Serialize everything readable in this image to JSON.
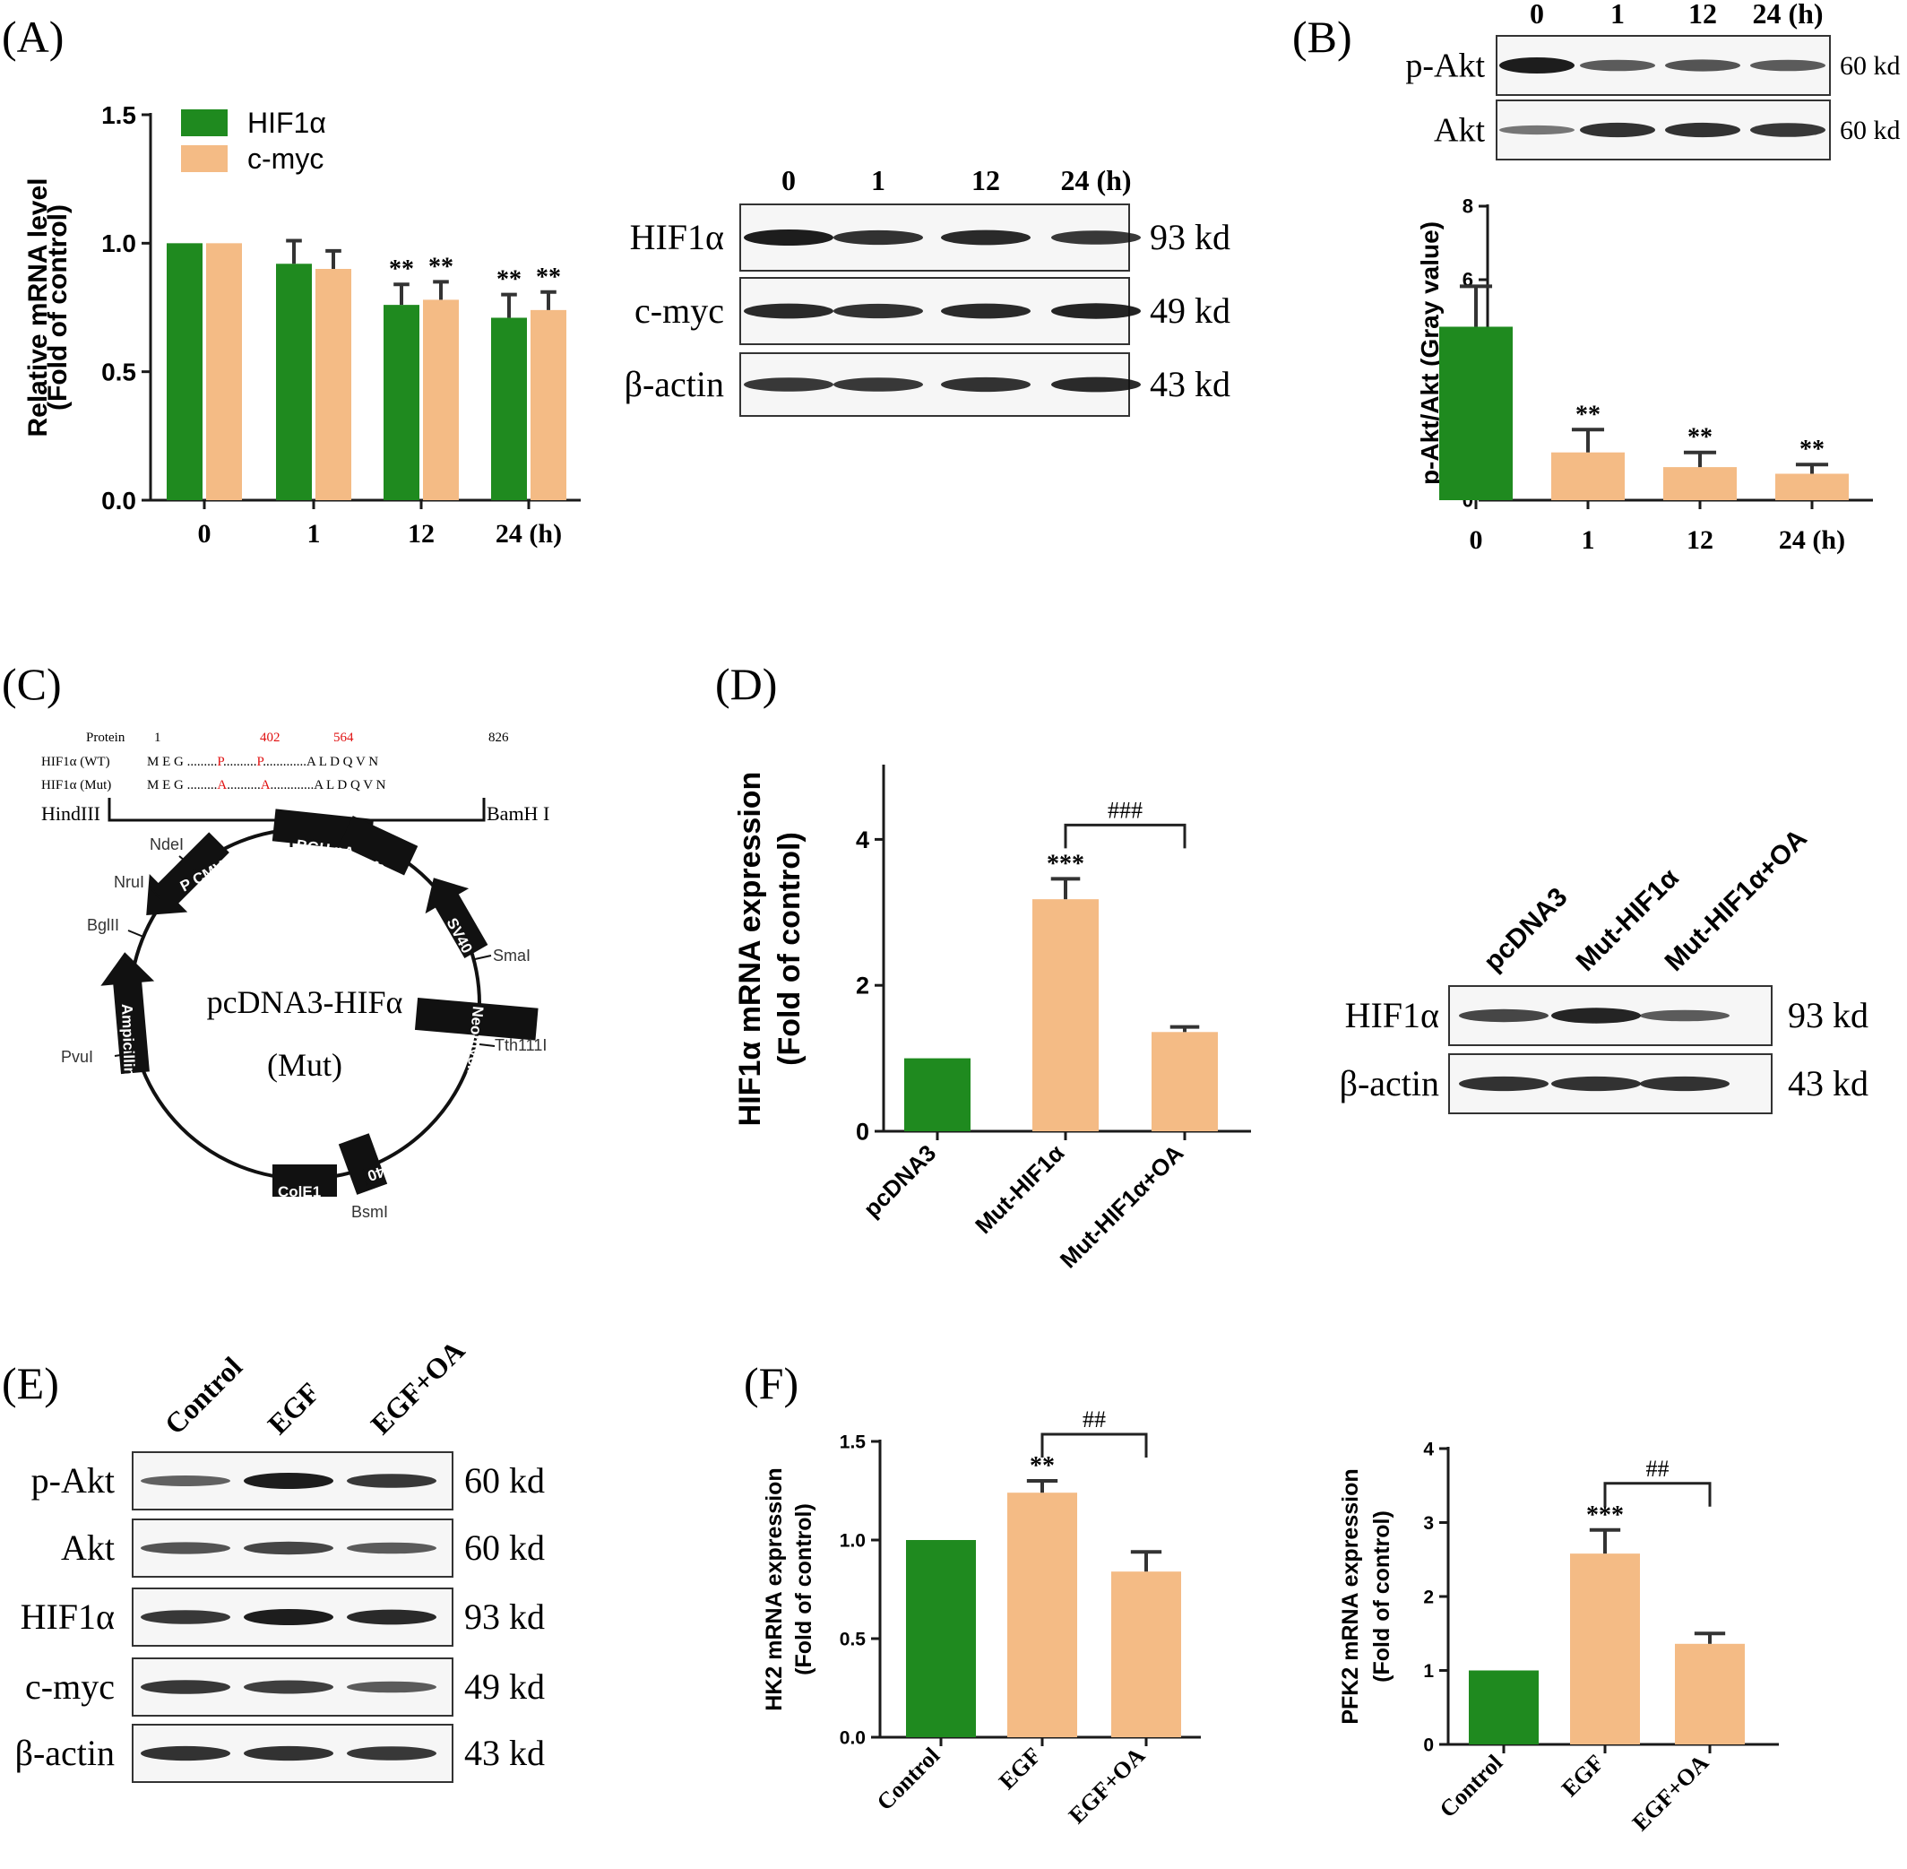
{
  "colors": {
    "green": "#1f8a1f",
    "peach": "#f4bb85",
    "axis": "#1a1a1a",
    "red": "#e01010"
  },
  "panels": {
    "A": {
      "label": "(A)"
    },
    "B": {
      "label": "(B)"
    },
    "C": {
      "label": "(C)"
    },
    "D": {
      "label": "(D)"
    },
    "E": {
      "label": "(E)"
    },
    "F": {
      "label": "(F)"
    }
  },
  "chart_data": [
    {
      "id": "A",
      "type": "bar",
      "ylabel": "Relative mRNA level (Fold of control)",
      "ylabel_lines": [
        "Relative mRNA level",
        "(Fold of control)"
      ],
      "ylim": [
        0,
        1.5
      ],
      "yticks": [
        "0.0",
        "0.5",
        "1.0",
        "1.5"
      ],
      "categories": [
        "0",
        "1",
        "12",
        "24 (h)"
      ],
      "series": [
        {
          "name": "HIF1α",
          "color": "green",
          "values": [
            1.0,
            0.92,
            0.76,
            0.71
          ],
          "errors": [
            0.0,
            0.09,
            0.08,
            0.09
          ]
        },
        {
          "name": "c-myc",
          "color": "peach",
          "values": [
            1.0,
            0.9,
            0.78,
            0.74
          ],
          "errors": [
            0.0,
            0.07,
            0.07,
            0.07
          ]
        }
      ],
      "annotations": [
        {
          "category": 2,
          "series": 0,
          "text": "**"
        },
        {
          "category": 2,
          "series": 1,
          "text": "**"
        },
        {
          "category": 3,
          "series": 0,
          "text": "**"
        },
        {
          "category": 3,
          "series": 1,
          "text": "**"
        }
      ],
      "legend_position": "top-left"
    },
    {
      "id": "B",
      "type": "bar",
      "ylabel": "p-Akt/Akt (Gray value)",
      "ylim": [
        0,
        8
      ],
      "yticks": [
        "0",
        "2",
        "4",
        "6",
        "8"
      ],
      "categories": [
        "0",
        "1",
        "12",
        "24 (h)"
      ],
      "values": [
        4.72,
        1.3,
        0.9,
        0.72
      ],
      "errors": [
        1.1,
        0.62,
        0.4,
        0.25
      ],
      "colors": [
        "green",
        "peach",
        "peach",
        "peach"
      ],
      "annotations": [
        "",
        "**",
        "**",
        "**"
      ]
    },
    {
      "id": "D",
      "type": "bar",
      "ylabel": "HIF1α mRNA expression (Fold of control)",
      "ylabel_lines": [
        "HIF1α mRNA expression",
        "(Fold of control)"
      ],
      "ylim": [
        0,
        5
      ],
      "yticks": [
        "0",
        "2",
        "4"
      ],
      "categories": [
        "pcDNA3",
        "Mut-HIF1α",
        "Mut-HIF1α+OA"
      ],
      "values": [
        1.0,
        3.18,
        1.36
      ],
      "errors": [
        0.0,
        0.28,
        0.07
      ],
      "colors": [
        "green",
        "peach",
        "peach"
      ],
      "annotations": [
        "",
        "***",
        ""
      ],
      "bracket": {
        "from": 1,
        "to": 2,
        "text": "###"
      }
    },
    {
      "id": "F1",
      "type": "bar",
      "ylabel": "HK2 mRNA expression (Fold of control)",
      "ylabel_lines": [
        "HK2 mRNA expression",
        "(Fold of control)"
      ],
      "ylim": [
        0,
        1.5
      ],
      "yticks": [
        "0.0",
        "0.5",
        "1.0",
        "1.5"
      ],
      "categories": [
        "Control",
        "EGF",
        "EGF+OA"
      ],
      "values": [
        1.0,
        1.24,
        0.84
      ],
      "errors": [
        0.0,
        0.06,
        0.1
      ],
      "colors": [
        "green",
        "peach",
        "peach"
      ],
      "annotations": [
        "",
        "**",
        ""
      ],
      "bracket": {
        "from": 1,
        "to": 2,
        "text": "##"
      }
    },
    {
      "id": "F2",
      "type": "bar",
      "ylabel": "PFK2 mRNA expression (Fold of control)",
      "ylabel_lines": [
        "PFK2 mRNA expression",
        "(Fold of control)"
      ],
      "ylim": [
        0,
        4
      ],
      "yticks": [
        "0",
        "1",
        "2",
        "3",
        "4"
      ],
      "categories": [
        "Control",
        "EGF",
        "EGF+OA"
      ],
      "values": [
        1.0,
        2.58,
        1.36
      ],
      "errors": [
        0.0,
        0.32,
        0.14
      ],
      "colors": [
        "green",
        "peach",
        "peach"
      ],
      "annotations": [
        "",
        "***",
        ""
      ],
      "bracket": {
        "from": 1,
        "to": 2,
        "text": "##"
      }
    }
  ],
  "blots": {
    "A": {
      "lanes": [
        "0",
        "1",
        "12",
        "24 (h)"
      ],
      "rows": [
        {
          "label": "HIF1α",
          "size": "93 kd"
        },
        {
          "label": "c-myc",
          "size": "49 kd"
        },
        {
          "label": "β-actin",
          "size": "43 kd"
        }
      ]
    },
    "B": {
      "lanes": [
        "0",
        "1",
        "12",
        "24 (h)"
      ],
      "rows": [
        {
          "label": "p-Akt",
          "size": "60 kd"
        },
        {
          "label": "Akt",
          "size": "60 kd"
        }
      ]
    },
    "D": {
      "lanes": [
        "pcDNA3",
        "Mut-HIF1α",
        "Mut-HIF1α+OA"
      ],
      "rows": [
        {
          "label": "HIF1α",
          "size": "93 kd"
        },
        {
          "label": "β-actin",
          "size": "43 kd"
        }
      ]
    },
    "E": {
      "lanes": [
        "Control",
        "EGF",
        "EGF+OA"
      ],
      "rows": [
        {
          "label": "p-Akt",
          "size": "60 kd"
        },
        {
          "label": "Akt",
          "size": "60 kd"
        },
        {
          "label": "HIF1α",
          "size": "93 kd"
        },
        {
          "label": "c-myc",
          "size": "49 kd"
        },
        {
          "label": "β-actin",
          "size": "43 kd"
        }
      ]
    }
  },
  "plasmid": {
    "title": "pcDNA3-HIFα",
    "subtitle": "(Mut)",
    "protein_label": "Protein",
    "positions": [
      "1",
      "402",
      "564",
      "826"
    ],
    "wt_label": "HIF1α (WT)",
    "mut_label": "HIF1α (Mut)",
    "wt_prefix": "M E G .........",
    "wt_p1": "P",
    "wt_mid": "..........",
    "wt_p2": "P",
    "wt_suffix": ".............A L D Q V N",
    "mut_p1": "A",
    "mut_p2": "A",
    "left_site": "HindIII",
    "right_site": "BamH I",
    "features": [
      "P CMV",
      "BGH pA",
      "f1 ori",
      "SV40",
      "Neomycin",
      "SV40",
      "ColE1",
      "Ampicillin"
    ],
    "sites": [
      "NdeI",
      "NruI",
      "BglII",
      "PvuI",
      "SmaI",
      "Tth111I",
      "BsmI"
    ]
  }
}
